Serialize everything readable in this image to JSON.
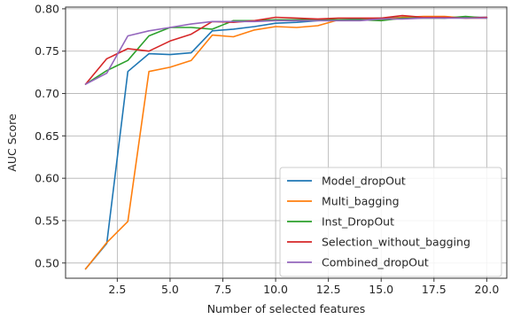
{
  "chart_data": {
    "type": "line",
    "xlabel": "Number of selected features",
    "ylabel": "AUC Score",
    "xlim": [
      0.05,
      20.95
    ],
    "ylim": [
      0.482,
      0.802
    ],
    "xticks": [
      2.5,
      5.0,
      7.5,
      10.0,
      12.5,
      15.0,
      17.5,
      20.0
    ],
    "xtick_labels": [
      "2.5",
      "5.0",
      "7.5",
      "10.0",
      "12.5",
      "15.0",
      "17.5",
      "20.0"
    ],
    "yticks": [
      0.5,
      0.55,
      0.6,
      0.65,
      0.7,
      0.75,
      0.8
    ],
    "ytick_labels": [
      "0.50",
      "0.55",
      "0.60",
      "0.65",
      "0.70",
      "0.75",
      "0.80"
    ],
    "grid": true,
    "legend_position": "lower-right",
    "x": [
      1,
      2,
      3,
      4,
      5,
      6,
      7,
      8,
      9,
      10,
      11,
      12,
      13,
      14,
      15,
      16,
      17,
      18,
      19,
      20
    ],
    "series": [
      {
        "name": "Model_dropOut",
        "color": "#1f77b4",
        "values": [
          0.493,
          0.523,
          0.726,
          0.747,
          0.746,
          0.748,
          0.774,
          0.776,
          0.779,
          0.783,
          0.784,
          0.786,
          0.787,
          0.788,
          0.789,
          0.79,
          0.79,
          0.789,
          0.79,
          0.79
        ]
      },
      {
        "name": "Multi_bagging",
        "color": "#ff7f0e",
        "values": [
          0.493,
          0.524,
          0.549,
          0.726,
          0.731,
          0.739,
          0.769,
          0.767,
          0.775,
          0.779,
          0.778,
          0.78,
          0.787,
          0.787,
          0.787,
          0.79,
          0.791,
          0.791,
          0.789,
          0.789
        ]
      },
      {
        "name": "Inst_DropOut",
        "color": "#2ca02c",
        "values": [
          0.711,
          0.727,
          0.739,
          0.768,
          0.778,
          0.778,
          0.776,
          0.786,
          0.786,
          0.787,
          0.787,
          0.787,
          0.787,
          0.787,
          0.786,
          0.789,
          0.789,
          0.789,
          0.791,
          0.789
        ]
      },
      {
        "name": "Selection_without_bagging",
        "color": "#d62728",
        "values": [
          0.711,
          0.741,
          0.753,
          0.75,
          0.762,
          0.77,
          0.785,
          0.784,
          0.786,
          0.79,
          0.789,
          0.788,
          0.789,
          0.789,
          0.789,
          0.792,
          0.79,
          0.79,
          0.789,
          0.79
        ]
      },
      {
        "name": "Combined_dropOut",
        "color": "#9467bd",
        "values": [
          0.711,
          0.724,
          0.768,
          0.774,
          0.778,
          0.782,
          0.785,
          0.785,
          0.785,
          0.786,
          0.786,
          0.786,
          0.786,
          0.786,
          0.788,
          0.788,
          0.789,
          0.789,
          0.789,
          0.789
        ]
      }
    ]
  }
}
